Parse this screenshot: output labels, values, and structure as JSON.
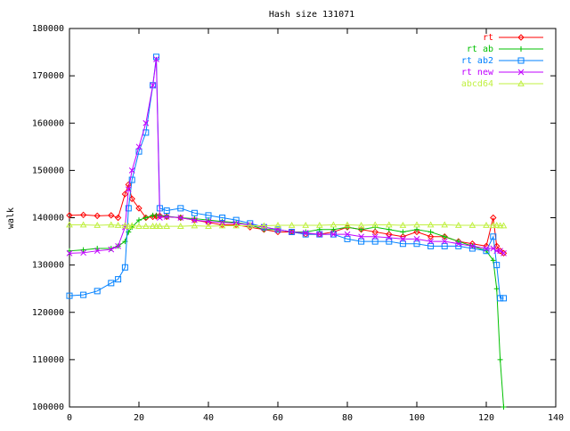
{
  "chart_data": {
    "type": "line",
    "title": "Hash size 131071",
    "y_label": "walk",
    "x": [
      0,
      4,
      8,
      12,
      14,
      16,
      17,
      18,
      20,
      22,
      24,
      25,
      26,
      28,
      32,
      36,
      40,
      44,
      48,
      52,
      56,
      60,
      64,
      68,
      72,
      76,
      80,
      84,
      88,
      92,
      96,
      100,
      104,
      108,
      112,
      116,
      120,
      122,
      123,
      124,
      125
    ],
    "series": [
      {
        "name": "rt",
        "color": "#ff0000",
        "marker": "diamond",
        "values": [
          140500,
          140600,
          140400,
          140500,
          140000,
          145000,
          147000,
          144000,
          142000,
          140000,
          140200,
          140300,
          140400,
          140200,
          140000,
          139500,
          139000,
          138500,
          138500,
          138000,
          137500,
          137000,
          137000,
          136500,
          136500,
          137000,
          138000,
          137500,
          137000,
          136500,
          136000,
          137000,
          136000,
          136000,
          135000,
          134500,
          134000,
          140000,
          134000,
          133000,
          132500
        ]
      },
      {
        "name": "rt ab",
        "color": "#00c000",
        "marker": "plus",
        "values": [
          133000,
          133200,
          133500,
          133500,
          134000,
          135000,
          137000,
          138000,
          139500,
          140000,
          140500,
          140500,
          140500,
          140300,
          140000,
          139800,
          139500,
          139200,
          139000,
          138500,
          137500,
          137500,
          137000,
          137000,
          137500,
          137500,
          138000,
          137500,
          138000,
          137500,
          137000,
          137500,
          137000,
          136000,
          135000,
          134000,
          133000,
          131000,
          125000,
          110000,
          100000
        ]
      },
      {
        "name": "rt ab2",
        "color": "#0080ff",
        "marker": "square",
        "values": [
          123500,
          123700,
          124500,
          126200,
          127000,
          129500,
          142000,
          148000,
          154000,
          158000,
          168000,
          174000,
          142000,
          141500,
          142000,
          141000,
          140500,
          140000,
          139500,
          138800,
          138000,
          137500,
          137000,
          136500,
          136500,
          136500,
          135500,
          135000,
          135000,
          135000,
          134500,
          134500,
          134000,
          134000,
          134000,
          133500,
          133000,
          136000,
          130000,
          123000,
          123000
        ]
      },
      {
        "name": "rt new",
        "color": "#c000ff",
        "marker": "cross",
        "values": [
          132500,
          132600,
          133000,
          133300,
          134000,
          138000,
          146000,
          150000,
          155000,
          160000,
          168000,
          173500,
          140000,
          140200,
          140000,
          139500,
          139200,
          139000,
          138800,
          138500,
          138000,
          137500,
          137000,
          136800,
          136500,
          136500,
          136500,
          136000,
          136000,
          135800,
          135500,
          135500,
          135000,
          135000,
          134500,
          134000,
          133500,
          133500,
          133000,
          133000,
          132500
        ]
      },
      {
        "name": "abcd64",
        "color": "#c0f040",
        "marker": "triangle",
        "values": [
          138500,
          138500,
          138400,
          138500,
          138400,
          138300,
          138200,
          138300,
          138200,
          138200,
          138200,
          138200,
          138200,
          138200,
          138200,
          138300,
          138200,
          138300,
          138300,
          138300,
          138300,
          138400,
          138400,
          138400,
          138400,
          138500,
          138500,
          138400,
          138500,
          138500,
          138400,
          138500,
          138500,
          138500,
          138400,
          138400,
          138400,
          138400,
          138400,
          138300,
          138300
        ]
      }
    ],
    "xlim": [
      0,
      140
    ],
    "xticks": [
      0,
      20,
      40,
      60,
      80,
      100,
      120,
      140
    ],
    "ylim": [
      100000,
      180000
    ],
    "yticks": [
      100000,
      110000,
      120000,
      130000,
      140000,
      150000,
      160000,
      170000,
      180000
    ],
    "legend": "top-right"
  }
}
